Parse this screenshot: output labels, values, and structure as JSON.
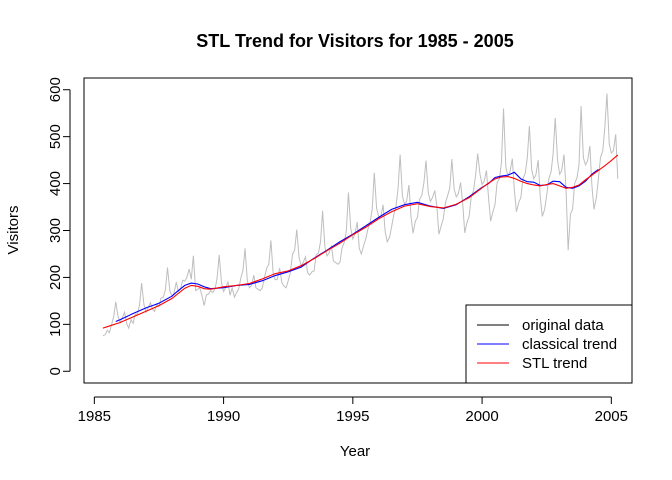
{
  "chart_data": {
    "type": "line",
    "title": "STL Trend for Visitors for 1985 - 2005",
    "xlabel": "Year",
    "ylabel": "Visitors",
    "xlim": [
      1984.6,
      2005.8
    ],
    "ylim": [
      -25,
      625
    ],
    "xticks": [
      1985,
      1990,
      1995,
      2000,
      2005
    ],
    "yticks": [
      0,
      100,
      200,
      300,
      400,
      500,
      600
    ],
    "grid": false,
    "legend": {
      "position": "bottom-right",
      "entries": [
        {
          "label": "original data",
          "color": "#000000"
        },
        {
          "label": "classical trend",
          "color": "#0000ff"
        },
        {
          "label": "STL trend",
          "color": "#ff0000"
        }
      ]
    },
    "series": [
      {
        "name": "original data",
        "color": "#bebebe",
        "x": [
          1985.33,
          1985.42,
          1985.5,
          1985.58,
          1985.67,
          1985.75,
          1985.83,
          1985.92,
          1986.0,
          1986.08,
          1986.17,
          1986.25,
          1986.33,
          1986.42,
          1986.5,
          1986.58,
          1986.67,
          1986.75,
          1986.83,
          1986.92,
          1987.0,
          1987.08,
          1987.17,
          1987.25,
          1987.33,
          1987.42,
          1987.5,
          1987.58,
          1987.67,
          1987.75,
          1987.83,
          1987.92,
          1988.0,
          1988.08,
          1988.17,
          1988.25,
          1988.33,
          1988.42,
          1988.5,
          1988.58,
          1988.67,
          1988.75,
          1988.83,
          1988.92,
          1989.0,
          1989.08,
          1989.17,
          1989.25,
          1989.33,
          1989.42,
          1989.5,
          1989.58,
          1989.67,
          1989.75,
          1989.83,
          1989.92,
          1990.0,
          1990.08,
          1990.17,
          1990.25,
          1990.33,
          1990.42,
          1990.5,
          1990.58,
          1990.67,
          1990.75,
          1990.83,
          1990.92,
          1991.0,
          1991.08,
          1991.17,
          1991.25,
          1991.33,
          1991.42,
          1991.5,
          1991.58,
          1991.67,
          1991.75,
          1991.83,
          1991.92,
          1992.0,
          1992.08,
          1992.17,
          1992.25,
          1992.33,
          1992.42,
          1992.5,
          1992.58,
          1992.67,
          1992.75,
          1992.83,
          1992.92,
          1993.0,
          1993.08,
          1993.17,
          1993.25,
          1993.33,
          1993.42,
          1993.5,
          1993.58,
          1993.67,
          1993.75,
          1993.83,
          1993.92,
          1994.0,
          1994.08,
          1994.17,
          1994.25,
          1994.33,
          1994.42,
          1994.5,
          1994.58,
          1994.67,
          1994.75,
          1994.83,
          1994.92,
          1995.0,
          1995.08,
          1995.17,
          1995.25,
          1995.33,
          1995.42,
          1995.5,
          1995.58,
          1995.67,
          1995.75,
          1995.83,
          1995.92,
          1996.0,
          1996.08,
          1996.17,
          1996.25,
          1996.33,
          1996.42,
          1996.5,
          1996.58,
          1996.67,
          1996.75,
          1996.83,
          1996.92,
          1997.0,
          1997.08,
          1997.17,
          1997.25,
          1997.33,
          1997.42,
          1997.5,
          1997.58,
          1997.67,
          1997.75,
          1997.83,
          1997.92,
          1998.0,
          1998.08,
          1998.17,
          1998.25,
          1998.33,
          1998.42,
          1998.5,
          1998.58,
          1998.67,
          1998.75,
          1998.83,
          1998.92,
          1999.0,
          1999.08,
          1999.17,
          1999.25,
          1999.33,
          1999.42,
          1999.5,
          1999.58,
          1999.67,
          1999.75,
          1999.83,
          1999.92,
          2000.0,
          2000.08,
          2000.17,
          2000.25,
          2000.33,
          2000.42,
          2000.5,
          2000.58,
          2000.67,
          2000.75,
          2000.83,
          2000.92,
          2001.0,
          2001.08,
          2001.17,
          2001.25,
          2001.33,
          2001.42,
          2001.5,
          2001.58,
          2001.67,
          2001.75,
          2001.83,
          2001.92,
          2002.0,
          2002.08,
          2002.17,
          2002.25,
          2002.33,
          2002.42,
          2002.5,
          2002.58,
          2002.67,
          2002.75,
          2002.83,
          2002.92,
          2003.0,
          2003.08,
          2003.17,
          2003.25,
          2003.33,
          2003.42,
          2003.5,
          2003.58,
          2003.67,
          2003.75,
          2003.83,
          2003.92,
          2004.0,
          2004.08,
          2004.17,
          2004.25,
          2004.33,
          2004.42,
          2004.5,
          2004.58,
          2004.67,
          2004.75,
          2004.83,
          2004.92,
          2005.0,
          2005.08,
          2005.17,
          2005.25
        ],
        "values": [
          76,
          78,
          87,
          82,
          100,
          117,
          148,
          116,
          104,
          114,
          126,
          102,
          92,
          110,
          102,
          121,
          123,
          142,
          188,
          142,
          126,
          136,
          146,
          132,
          128,
          144,
          138,
          156,
          158,
          174,
          221,
          172,
          160,
          166,
          190,
          170,
          175,
          194,
          192,
          200,
          218,
          196,
          246,
          172,
          175,
          178,
          160,
          140,
          162,
          165,
          172,
          168,
          175,
          199,
          248,
          188,
          170,
          178,
          190,
          162,
          178,
          158,
          167,
          175,
          199,
          215,
          262,
          192,
          178,
          183,
          205,
          178,
          175,
          172,
          178,
          200,
          220,
          228,
          279,
          207,
          195,
          196,
          220,
          190,
          182,
          178,
          193,
          210,
          250,
          258,
          302,
          243,
          225,
          232,
          244,
          210,
          205,
          212,
          214,
          248,
          252,
          276,
          342,
          265,
          246,
          252,
          268,
          235,
          232,
          228,
          232,
          262,
          275,
          300,
          381,
          304,
          282,
          292,
          318,
          262,
          250,
          268,
          282,
          302,
          318,
          346,
          423,
          347,
          330,
          328,
          355,
          298,
          276,
          285,
          308,
          332,
          352,
          390,
          462,
          373,
          356,
          362,
          397,
          330,
          294,
          320,
          328,
          366,
          375,
          402,
          449,
          380,
          362,
          370,
          385,
          352,
          292,
          310,
          325,
          358,
          375,
          390,
          452,
          388,
          372,
          378,
          402,
          358,
          295,
          318,
          330,
          372,
          385,
          418,
          464,
          420,
          398,
          405,
          428,
          370,
          320,
          340,
          355,
          402,
          410,
          445,
          560,
          435,
          416,
          425,
          453,
          385,
          340,
          360,
          370,
          410,
          422,
          455,
          523,
          430,
          410,
          418,
          450,
          372,
          330,
          345,
          375,
          410,
          425,
          465,
          540,
          450,
          420,
          428,
          462,
          385,
          258,
          335,
          345,
          400,
          412,
          440,
          565,
          455,
          440,
          448,
          480,
          395,
          345,
          370,
          410,
          455,
          470,
          520,
          592,
          485,
          465,
          470,
          505,
          410
        ]
      },
      {
        "name": "classical trend",
        "color": "#0000ff",
        "x": [
          1985.83,
          1986.0,
          1986.5,
          1987.0,
          1987.5,
          1988.0,
          1988.25,
          1988.5,
          1988.75,
          1989.0,
          1989.25,
          1989.5,
          1990.0,
          1990.5,
          1991.0,
          1991.5,
          1992.0,
          1992.5,
          1993.0,
          1993.5,
          1994.0,
          1994.5,
          1995.0,
          1995.5,
          1996.0,
          1996.5,
          1997.0,
          1997.5,
          1998.0,
          1998.5,
          1999.0,
          1999.5,
          2000.0,
          2000.25,
          2000.5,
          2000.75,
          2001.0,
          2001.25,
          2001.5,
          2001.75,
          2002.0,
          2002.25,
          2002.5,
          2002.75,
          2003.0,
          2003.25,
          2003.5,
          2003.75,
          2004.0,
          2004.25,
          2004.5
        ],
        "values": [
          106,
          110,
          123,
          135,
          145,
          160,
          172,
          183,
          188,
          186,
          180,
          176,
          178,
          183,
          185,
          193,
          204,
          212,
          222,
          241,
          258,
          276,
          292,
          310,
          328,
          345,
          355,
          360,
          352,
          347,
          355,
          372,
          392,
          400,
          413,
          416,
          418,
          424,
          410,
          404,
          403,
          396,
          397,
          405,
          404,
          392,
          390,
          395,
          405,
          420,
          430
        ]
      },
      {
        "name": "STL trend",
        "color": "#ff0000",
        "x": [
          1985.33,
          1985.5,
          1986.0,
          1986.5,
          1987.0,
          1987.5,
          1988.0,
          1988.25,
          1988.5,
          1988.75,
          1989.0,
          1989.25,
          1989.5,
          1990.0,
          1990.5,
          1991.0,
          1991.5,
          1992.0,
          1992.5,
          1993.0,
          1993.5,
          1994.0,
          1994.5,
          1995.0,
          1995.5,
          1996.0,
          1996.5,
          1997.0,
          1997.5,
          1998.0,
          1998.5,
          1999.0,
          1999.5,
          2000.0,
          2000.25,
          2000.5,
          2000.75,
          2001.0,
          2001.25,
          2001.5,
          2001.75,
          2002.0,
          2002.25,
          2002.5,
          2002.75,
          2003.0,
          2003.25,
          2003.5,
          2003.75,
          2004.0,
          2004.25,
          2004.5,
          2004.75,
          2005.0,
          2005.25
        ],
        "values": [
          92,
          95,
          104,
          116,
          128,
          140,
          155,
          166,
          177,
          183,
          181,
          176,
          175,
          180,
          183,
          187,
          197,
          208,
          214,
          225,
          240,
          257,
          273,
          291,
          307,
          325,
          340,
          352,
          357,
          351,
          348,
          356,
          370,
          391,
          401,
          410,
          414,
          415,
          411,
          405,
          400,
          397,
          395,
          398,
          400,
          395,
          390,
          392,
          397,
          408,
          418,
          428,
          438,
          449,
          461
        ]
      }
    ]
  }
}
